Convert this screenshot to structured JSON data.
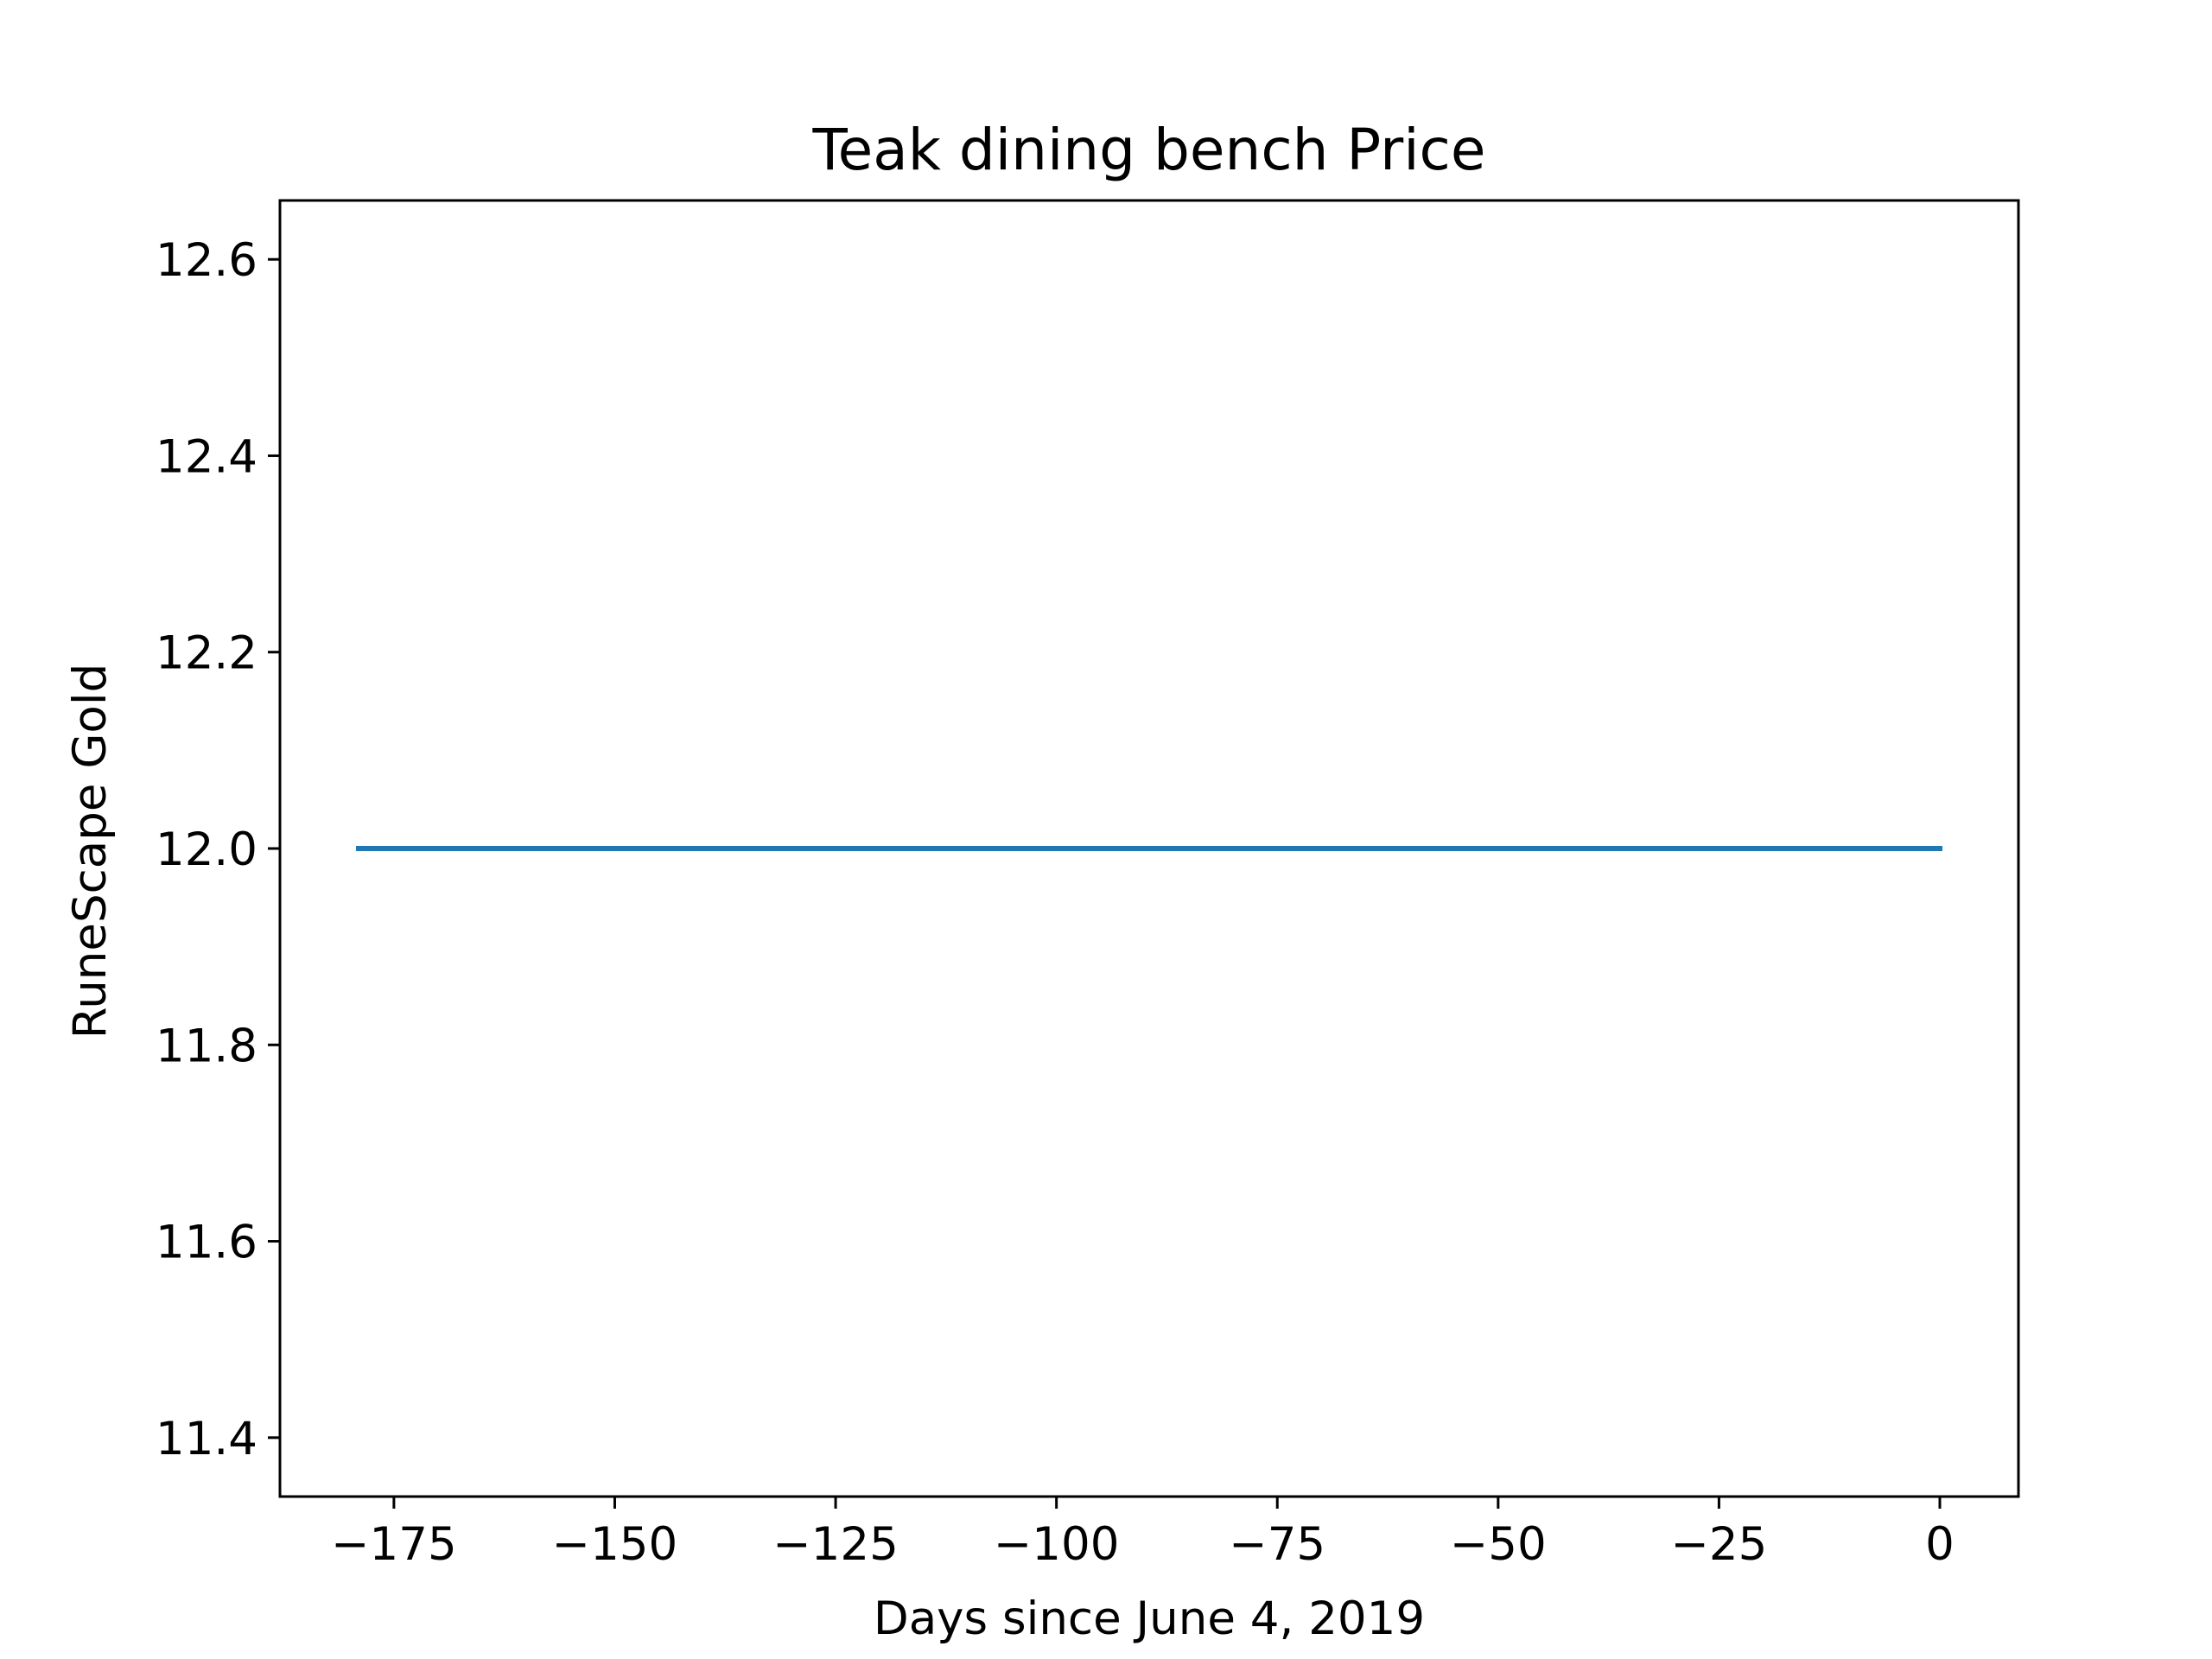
{
  "chart_data": {
    "type": "line",
    "title": "Teak dining bench Price",
    "xlabel": "Days since June 4, 2019",
    "ylabel": "RuneScape Gold",
    "xlim": [
      -187.9,
      8.9
    ],
    "ylim": [
      11.34,
      12.66
    ],
    "xticks": [
      -175,
      -150,
      -125,
      -100,
      -75,
      -50,
      -25,
      0
    ],
    "xtick_labels": [
      "−175",
      "−150",
      "−125",
      "−100",
      "−75",
      "−50",
      "−25",
      "0"
    ],
    "yticks": [
      11.4,
      11.6,
      11.8,
      12.0,
      12.2,
      12.4,
      12.6
    ],
    "ytick_labels": [
      "11.4",
      "11.6",
      "11.8",
      "12.0",
      "12.2",
      "12.4",
      "12.6"
    ],
    "grid": false,
    "series": [
      {
        "color": "#1f77b4",
        "x": [
          -179,
          0
        ],
        "y": [
          12.0,
          12.0
        ]
      }
    ]
  }
}
